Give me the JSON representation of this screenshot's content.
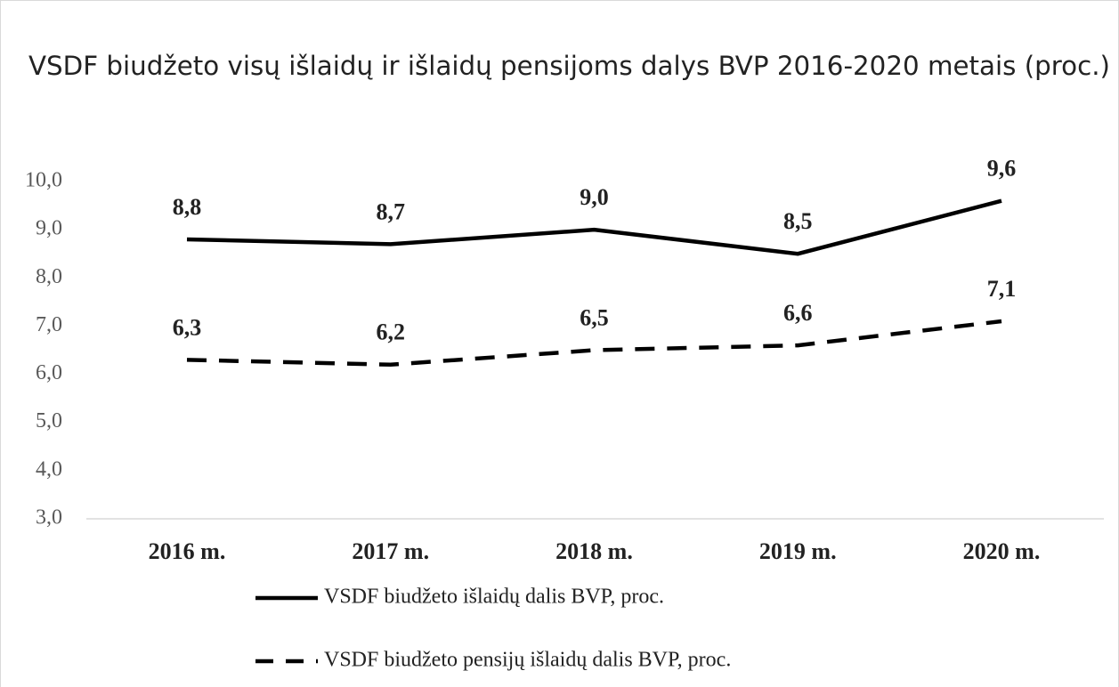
{
  "chart_data": {
    "type": "line",
    "title": "VSDF biudžeto visų išlaidų ir išlaidų pensijoms dalys BVP 2016-2020 metais (proc.)",
    "categories": [
      "2016 m.",
      "2017 m.",
      "2018 m.",
      "2019 m.",
      "2020 m."
    ],
    "series": [
      {
        "name": "VSDF biudžeto išlaidų dalis BVP, proc.",
        "color": "#000000",
        "line_style": "solid",
        "values": [
          8.8,
          8.7,
          9.0,
          8.5,
          9.6
        ],
        "value_labels": [
          "8,8",
          "8,7",
          "9,0",
          "8,5",
          "9,6"
        ]
      },
      {
        "name": "VSDF biudžeto pensijų išlaidų dalis BVP, proc.",
        "color": "#000000",
        "line_style": "dashed",
        "values": [
          6.3,
          6.2,
          6.5,
          6.6,
          7.1
        ],
        "value_labels": [
          "6,3",
          "6,2",
          "6,5",
          "6,6",
          "7,1"
        ]
      }
    ],
    "ylim": [
      3,
      10
    ],
    "yticks": [
      {
        "value": 3,
        "label": "3,0"
      },
      {
        "value": 4,
        "label": "4,0"
      },
      {
        "value": 5,
        "label": "5,0"
      },
      {
        "value": 6,
        "label": "6,0"
      },
      {
        "value": 7,
        "label": "7,0"
      },
      {
        "value": 8,
        "label": "8,0"
      },
      {
        "value": 9,
        "label": "9,0"
      },
      {
        "value": 10,
        "label": "10,0"
      }
    ],
    "grid": false,
    "legend": "bottom"
  }
}
